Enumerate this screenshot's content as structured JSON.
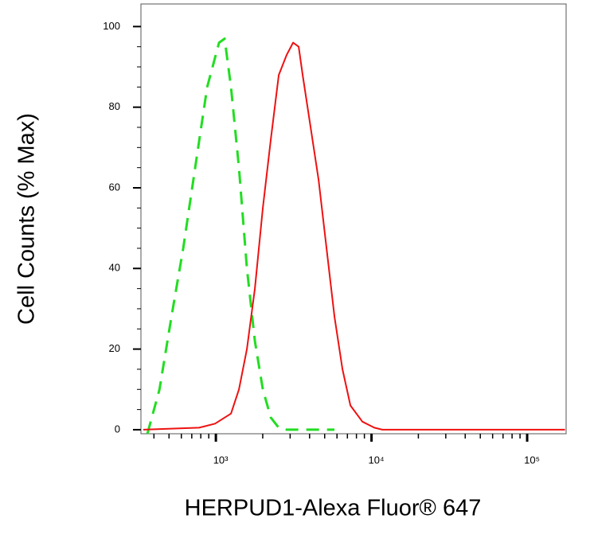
{
  "chart_data": {
    "type": "line",
    "x_label": "HERPUD1-Alexa Fluor® 647",
    "y_label": "Cell Counts (% Max)",
    "xscale": "log",
    "xlim": [
      330,
      178000
    ],
    "ylim": [
      -1,
      105.6
    ],
    "xticks": [
      {
        "value": 1000,
        "label": "10³"
      },
      {
        "value": 10000,
        "label": "10⁴"
      },
      {
        "value": 100000,
        "label": "10⁵"
      }
    ],
    "xminorticks": [
      400,
      500,
      600,
      700,
      800,
      900,
      2000,
      3000,
      4000,
      5000,
      6000,
      7000,
      8000,
      9000,
      20000,
      30000,
      40000,
      50000,
      60000,
      70000,
      80000,
      90000
    ],
    "yticks": [
      0,
      20,
      40,
      60,
      80,
      100
    ],
    "yminorticks": [
      5,
      10,
      15,
      25,
      30,
      35,
      45,
      50,
      55,
      65,
      70,
      75,
      85,
      90,
      95
    ],
    "series": [
      {
        "color": "#22dd22",
        "dash": true,
        "x": [
          363,
          434,
          518,
          617,
          736,
          879,
          1048,
          1138,
          1251,
          1407,
          1583,
          1781,
          2004,
          2254,
          2536,
          2853,
          3611,
          4571,
          5783
        ],
        "values": [
          -1,
          10,
          28,
          45,
          65,
          85,
          96,
          97,
          85,
          65,
          40,
          22,
          10,
          3,
          0.5,
          0,
          0,
          0,
          0
        ]
      },
      {
        "color": "#ee1111",
        "dash": false,
        "x": [
          342,
          781,
          988,
          1251,
          1407,
          1583,
          1781,
          2004,
          2254,
          2536,
          2853,
          3133,
          3404,
          3611,
          4063,
          4571,
          5143,
          5783,
          6507,
          7318,
          8730,
          10420,
          11720,
          175000
        ],
        "values": [
          0,
          0.5,
          1.5,
          4,
          10,
          20,
          35,
          55,
          72,
          88,
          93,
          96,
          95,
          88,
          75,
          62,
          45,
          28,
          15,
          6,
          2,
          0.5,
          0,
          0
        ]
      }
    ]
  }
}
